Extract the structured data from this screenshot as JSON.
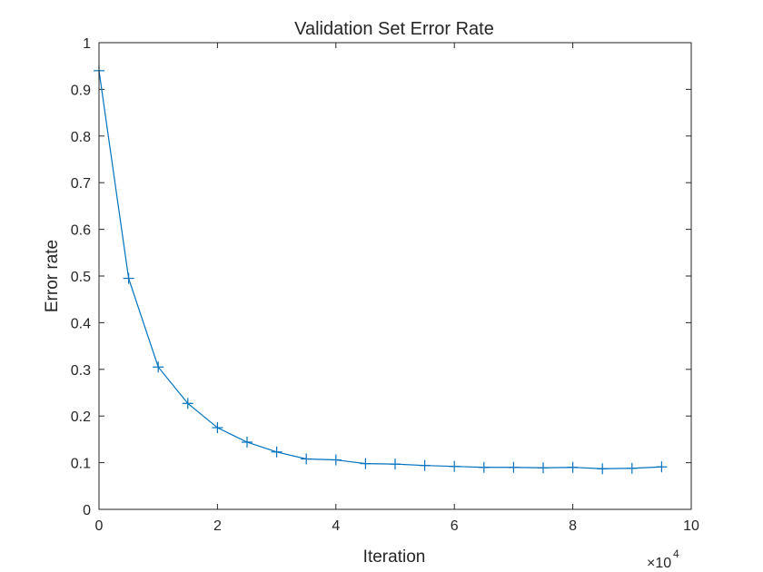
{
  "chart_data": {
    "type": "line",
    "title": "Validation Set Error Rate",
    "xlabel": "Iteration",
    "ylabel": "Error rate",
    "x_exponent_label": {
      "base": "×10",
      "exponent": "4"
    },
    "xlim": [
      0,
      100000
    ],
    "ylim": [
      0,
      1
    ],
    "x_ticks": [
      0,
      20000,
      40000,
      60000,
      80000,
      100000
    ],
    "x_tick_labels": [
      "0",
      "2",
      "4",
      "6",
      "8",
      "10"
    ],
    "y_ticks": [
      0,
      0.1,
      0.2,
      0.3,
      0.4,
      0.5,
      0.6,
      0.7,
      0.8,
      0.9,
      1
    ],
    "y_tick_labels": [
      "0",
      "0.1",
      "0.2",
      "0.3",
      "0.4",
      "0.5",
      "0.6",
      "0.7",
      "0.8",
      "0.9",
      "1"
    ],
    "grid": false,
    "series": [
      {
        "color": "#0072BD",
        "marker": "plus",
        "x": [
          0,
          5000,
          10000,
          15000,
          20000,
          25000,
          30000,
          35000,
          40000,
          45000,
          50000,
          55000,
          60000,
          65000,
          70000,
          75000,
          80000,
          85000,
          90000,
          95000
        ],
        "y": [
          0.94,
          0.495,
          0.305,
          0.227,
          0.175,
          0.144,
          0.123,
          0.108,
          0.106,
          0.098,
          0.097,
          0.094,
          0.092,
          0.09,
          0.09,
          0.089,
          0.09,
          0.087,
          0.088,
          0.091
        ]
      }
    ]
  }
}
